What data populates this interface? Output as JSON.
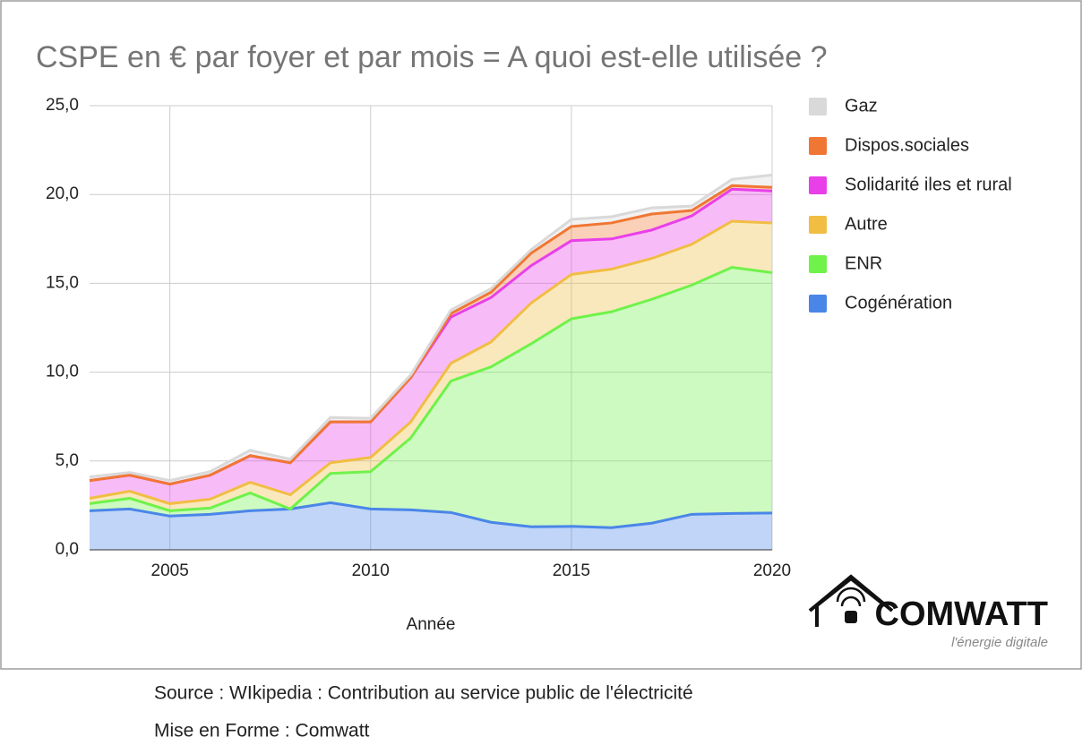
{
  "chart_data": {
    "type": "stacked_area",
    "title": "CSPE en € par foyer et par mois = A quoi est-elle utilisée ?",
    "x_label": "Année",
    "x": [
      2003,
      2004,
      2005,
      2006,
      2007,
      2008,
      2009,
      2010,
      2011,
      2012,
      2013,
      2014,
      2015,
      2016,
      2017,
      2018,
      2019,
      2020
    ],
    "xlim": [
      2003,
      2020
    ],
    "xticks": [
      2005,
      2010,
      2015,
      2020
    ],
    "ylim": [
      0,
      25
    ],
    "yticks": [
      {
        "value": 0,
        "label": "0,0"
      },
      {
        "value": 5,
        "label": "5,0"
      },
      {
        "value": 10,
        "label": "10,0"
      },
      {
        "value": 15,
        "label": "15,0"
      },
      {
        "value": 20,
        "label": "20,0"
      },
      {
        "value": 25,
        "label": "25,0"
      }
    ],
    "grid": true,
    "legend": "right",
    "series": [
      {
        "name": "Cogénération",
        "color": "#4a86e8",
        "values": [
          2.2,
          2.3,
          1.9,
          2.0,
          2.2,
          2.3,
          2.65,
          2.3,
          2.25,
          2.1,
          1.55,
          1.3,
          1.32,
          1.25,
          1.5,
          2.0,
          2.05,
          2.07
        ]
      },
      {
        "name": "ENR",
        "color": "#6ff24a",
        "values": [
          0.4,
          0.6,
          0.3,
          0.35,
          1.0,
          0.0,
          1.65,
          2.1,
          4.05,
          7.4,
          8.75,
          10.3,
          11.68,
          12.15,
          12.6,
          12.9,
          13.85,
          13.53
        ]
      },
      {
        "name": "Autre",
        "color": "#f1bd43",
        "values": [
          0.3,
          0.4,
          0.4,
          0.5,
          0.6,
          0.8,
          0.6,
          0.8,
          0.9,
          1.0,
          1.4,
          2.3,
          2.5,
          2.4,
          2.3,
          2.3,
          2.6,
          2.8
        ]
      },
      {
        "name": "Solidarité iles et rural",
        "color": "#e93fe9",
        "values": [
          1.0,
          0.9,
          1.1,
          1.35,
          1.5,
          1.8,
          2.3,
          2.0,
          2.5,
          2.6,
          2.5,
          2.1,
          1.9,
          1.7,
          1.6,
          1.6,
          1.8,
          1.8
        ]
      },
      {
        "name": "Dispos.sociales",
        "color": "#f07733",
        "values": [
          0,
          0,
          0,
          0,
          0,
          0,
          0,
          0,
          0,
          0.2,
          0.3,
          0.7,
          0.8,
          0.9,
          0.9,
          0.3,
          0.2,
          0.2
        ]
      },
      {
        "name": "Gaz",
        "color": "#d9d9d9",
        "values": [
          0.2,
          0.15,
          0.2,
          0.2,
          0.3,
          0.2,
          0.25,
          0.2,
          0.15,
          0.2,
          0.2,
          0.2,
          0.4,
          0.35,
          0.35,
          0.25,
          0.35,
          0.7
        ]
      }
    ]
  },
  "logo": {
    "brand": "COMWATT",
    "tagline": "l'énergie digitale"
  },
  "footer": {
    "source": "Source : WIkipedia : Contribution au service public de l'électricité",
    "credit": "Mise en Forme : Comwatt"
  }
}
